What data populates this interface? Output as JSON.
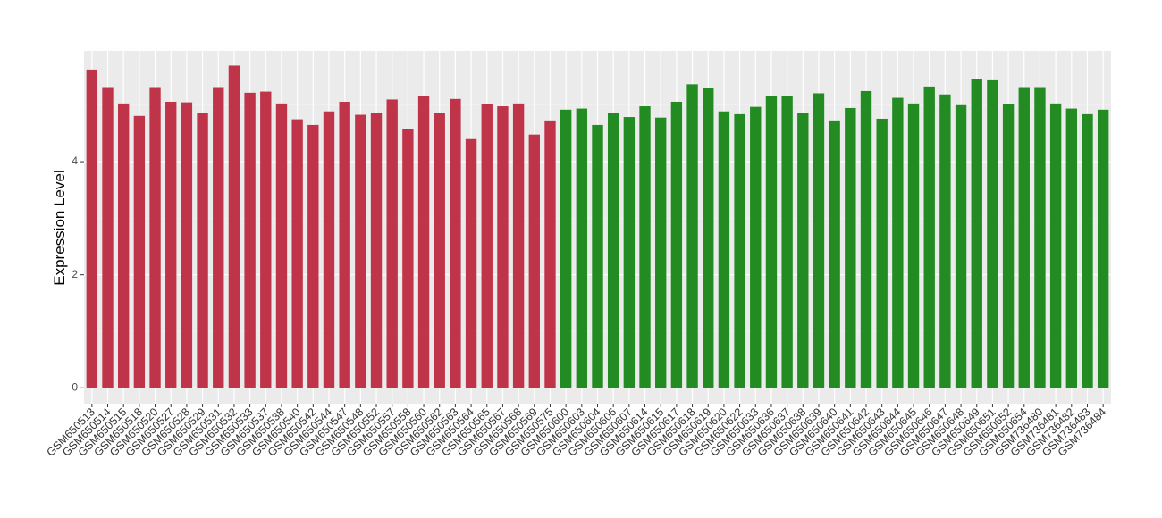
{
  "chart_data": {
    "type": "bar",
    "y_label": "Expression Level",
    "categories": [
      "GSM650513",
      "GSM650514",
      "GSM650515",
      "GSM650518",
      "GSM650520",
      "GSM650527",
      "GSM650528",
      "GSM650529",
      "GSM650531",
      "GSM650532",
      "GSM650533",
      "GSM650537",
      "GSM650538",
      "GSM650540",
      "GSM650542",
      "GSM650544",
      "GSM650547",
      "GSM650548",
      "GSM650552",
      "GSM650557",
      "GSM650558",
      "GSM650560",
      "GSM650562",
      "GSM650563",
      "GSM650564",
      "GSM650565",
      "GSM650567",
      "GSM650568",
      "GSM650569",
      "GSM650575",
      "GSM650600",
      "GSM650603",
      "GSM650604",
      "GSM650606",
      "GSM650607",
      "GSM650614",
      "GSM650615",
      "GSM650617",
      "GSM650618",
      "GSM650619",
      "GSM650620",
      "GSM650622",
      "GSM650633",
      "GSM650636",
      "GSM650637",
      "GSM650638",
      "GSM650639",
      "GSM650640",
      "GSM650641",
      "GSM650642",
      "GSM650643",
      "GSM650644",
      "GSM650645",
      "GSM650646",
      "GSM650647",
      "GSM650648",
      "GSM650649",
      "GSM650651",
      "GSM650652",
      "GSM650654",
      "GSM736480",
      "GSM736481",
      "GSM736482",
      "GSM736483",
      "GSM736484"
    ],
    "values": [
      5.63,
      5.32,
      5.03,
      4.81,
      5.32,
      5.06,
      5.05,
      4.87,
      5.32,
      5.7,
      5.22,
      5.24,
      5.03,
      4.75,
      4.65,
      4.89,
      5.06,
      4.83,
      4.87,
      5.1,
      4.57,
      5.17,
      4.87,
      5.11,
      4.4,
      5.02,
      4.98,
      5.03,
      4.48,
      4.73,
      4.92,
      4.94,
      4.65,
      4.87,
      4.79,
      4.98,
      4.78,
      5.06,
      5.37,
      5.3,
      4.89,
      4.84,
      4.97,
      5.17,
      5.17,
      4.86,
      5.21,
      4.73,
      4.95,
      5.25,
      4.76,
      5.13,
      5.03,
      5.33,
      5.19,
      5.0,
      5.46,
      5.44,
      5.02,
      5.32,
      5.32,
      5.03,
      4.94,
      4.84,
      4.92
    ],
    "colors": [
      "#c0344a",
      "#c0344a",
      "#c0344a",
      "#c0344a",
      "#c0344a",
      "#c0344a",
      "#c0344a",
      "#c0344a",
      "#c0344a",
      "#c0344a",
      "#c0344a",
      "#c0344a",
      "#c0344a",
      "#c0344a",
      "#c0344a",
      "#c0344a",
      "#c0344a",
      "#c0344a",
      "#c0344a",
      "#c0344a",
      "#c0344a",
      "#c0344a",
      "#c0344a",
      "#c0344a",
      "#c0344a",
      "#c0344a",
      "#c0344a",
      "#c0344a",
      "#c0344a",
      "#c0344a",
      "#228b22",
      "#228b22",
      "#228b22",
      "#228b22",
      "#228b22",
      "#228b22",
      "#228b22",
      "#228b22",
      "#228b22",
      "#228b22",
      "#228b22",
      "#228b22",
      "#228b22",
      "#228b22",
      "#228b22",
      "#228b22",
      "#228b22",
      "#228b22",
      "#228b22",
      "#228b22",
      "#228b22",
      "#228b22",
      "#228b22",
      "#228b22",
      "#228b22",
      "#228b22",
      "#228b22",
      "#228b22",
      "#228b22",
      "#228b22",
      "#228b22",
      "#228b22",
      "#228b22",
      "#228b22",
      "#228b22"
    ],
    "ylim": [
      -0.28,
      5.96
    ],
    "yticks": [
      0,
      2,
      4
    ],
    "y_minor_ticks": [
      1,
      3,
      5
    ],
    "grid": true
  }
}
